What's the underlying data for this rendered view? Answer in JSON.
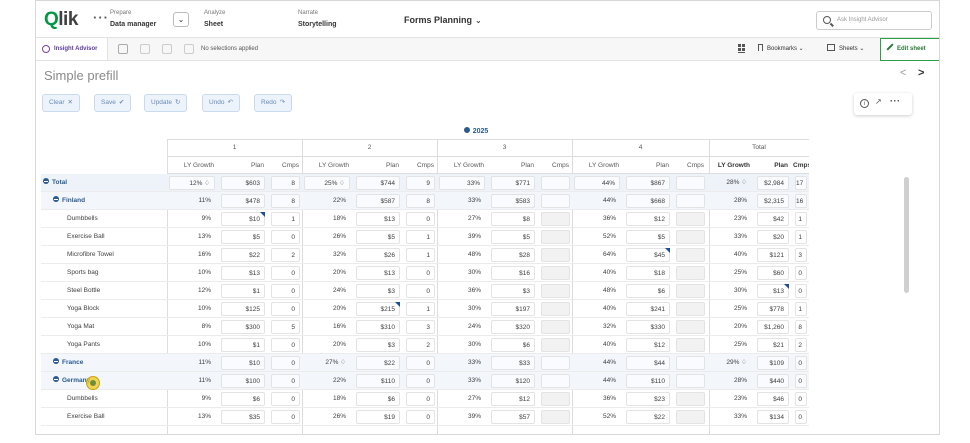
{
  "topbar": {
    "logo": "Qlik",
    "more": "···",
    "steps": [
      {
        "small": "Prepare",
        "big": "Data manager"
      },
      {
        "small": "Analyze",
        "big": "Sheet"
      },
      {
        "small": "Narrate",
        "big": "Storytelling"
      }
    ],
    "app_title": "Forms Planning",
    "search_placeholder": "Ask Insight Advisor"
  },
  "toolbar": {
    "insight_advisor": "Insight Advisor",
    "no_selections": "No selections applied",
    "bookmarks": "Bookmarks",
    "sheets": "Sheets",
    "edit_sheet": "Edit sheet"
  },
  "sheet": {
    "title": "Simple prefill",
    "prev": "<",
    "next": ">"
  },
  "actions": {
    "clear": "Clear",
    "clear_icon": "✕",
    "save": "Save",
    "save_icon": "✔",
    "update": "Update",
    "update_icon": "↻",
    "undo": "Undo",
    "undo_icon": "↶",
    "redo": "Redo",
    "redo_icon": "↷"
  },
  "table": {
    "year": "2025",
    "quarters": [
      "1",
      "2",
      "3",
      "4"
    ],
    "total_label": "Total",
    "col_headers": [
      "LY Growth",
      "Plan",
      "Cmps"
    ],
    "rows": [
      {
        "label": "Total",
        "level": 0,
        "q": [
          [
            "12% ♢",
            "$603",
            "8"
          ],
          [
            "25% ♢",
            "$744",
            "9"
          ],
          [
            "33%",
            "$771",
            ""
          ],
          [
            "44%",
            "$867",
            ""
          ]
        ],
        "t": [
          "28% ♢",
          "$2,984",
          "17"
        ]
      },
      {
        "label": "Finland",
        "level": 1,
        "q": [
          [
            "11%",
            "$478",
            "8"
          ],
          [
            "22%",
            "$587",
            "8"
          ],
          [
            "33%",
            "$583",
            ""
          ],
          [
            "44%",
            "$668",
            ""
          ]
        ],
        "t": [
          "28%",
          "$2,315",
          "16"
        ]
      },
      {
        "label": "Dumbbells",
        "level": 2,
        "q": [
          [
            "9%",
            "$10",
            "1"
          ],
          [
            "18%",
            "$13",
            "0"
          ],
          [
            "27%",
            "$8",
            ""
          ],
          [
            "36%",
            "$12",
            ""
          ]
        ],
        "t": [
          "23%",
          "$42",
          "1"
        ]
      },
      {
        "label": "Exercise Ball",
        "level": 2,
        "q": [
          [
            "13%",
            "$5",
            "0"
          ],
          [
            "26%",
            "$5",
            "1"
          ],
          [
            "39%",
            "$5",
            ""
          ],
          [
            "52%",
            "$5",
            ""
          ]
        ],
        "t": [
          "33%",
          "$20",
          "1"
        ]
      },
      {
        "label": "Microfibre Towel",
        "level": 2,
        "q": [
          [
            "16%",
            "$22",
            "2"
          ],
          [
            "32%",
            "$26",
            "1"
          ],
          [
            "48%",
            "$28",
            ""
          ],
          [
            "64%",
            "$45",
            ""
          ]
        ],
        "t": [
          "40%",
          "$121",
          "3"
        ]
      },
      {
        "label": "Sports bag",
        "level": 2,
        "q": [
          [
            "10%",
            "$13",
            "0"
          ],
          [
            "20%",
            "$13",
            "0"
          ],
          [
            "30%",
            "$16",
            ""
          ],
          [
            "40%",
            "$18",
            ""
          ]
        ],
        "t": [
          "25%",
          "$60",
          "0"
        ]
      },
      {
        "label": "Steel Bottle",
        "level": 2,
        "q": [
          [
            "12%",
            "$1",
            "0"
          ],
          [
            "24%",
            "$3",
            "0"
          ],
          [
            "36%",
            "$3",
            ""
          ],
          [
            "48%",
            "$6",
            ""
          ]
        ],
        "t": [
          "30%",
          "$13",
          "0"
        ]
      },
      {
        "label": "Yoga Block",
        "level": 2,
        "q": [
          [
            "10%",
            "$125",
            "0"
          ],
          [
            "20%",
            "$215",
            "1"
          ],
          [
            "30%",
            "$197",
            ""
          ],
          [
            "40%",
            "$241",
            ""
          ]
        ],
        "t": [
          "25%",
          "$778",
          "1"
        ]
      },
      {
        "label": "Yoga Mat",
        "level": 2,
        "q": [
          [
            "8%",
            "$300",
            "5"
          ],
          [
            "16%",
            "$310",
            "3"
          ],
          [
            "24%",
            "$320",
            ""
          ],
          [
            "32%",
            "$330",
            ""
          ]
        ],
        "t": [
          "20%",
          "$1,260",
          "8"
        ]
      },
      {
        "label": "Yoga Pants",
        "level": 2,
        "q": [
          [
            "10%",
            "$1",
            "0"
          ],
          [
            "20%",
            "$3",
            "2"
          ],
          [
            "30%",
            "$6",
            ""
          ],
          [
            "40%",
            "$12",
            ""
          ]
        ],
        "t": [
          "25%",
          "$21",
          "2"
        ]
      },
      {
        "label": "France",
        "level": 1,
        "q": [
          [
            "11%",
            "$10",
            "0"
          ],
          [
            "27% ♢",
            "$22",
            "0"
          ],
          [
            "33%",
            "$33",
            ""
          ],
          [
            "44%",
            "$44",
            ""
          ]
        ],
        "t": [
          "29% ♢",
          "$109",
          "0"
        ]
      },
      {
        "label": "Germany",
        "level": 1,
        "q": [
          [
            "11%",
            "$100",
            "0"
          ],
          [
            "22%",
            "$110",
            "0"
          ],
          [
            "33%",
            "$120",
            ""
          ],
          [
            "44%",
            "$110",
            ""
          ]
        ],
        "t": [
          "28%",
          "$440",
          "0"
        ]
      },
      {
        "label": "Dumbbells",
        "level": 2,
        "q": [
          [
            "9%",
            "$6",
            "0"
          ],
          [
            "18%",
            "$6",
            "0"
          ],
          [
            "27%",
            "$12",
            ""
          ],
          [
            "36%",
            "$23",
            ""
          ]
        ],
        "t": [
          "23%",
          "$46",
          "0"
        ]
      },
      {
        "label": "Exercise Ball",
        "level": 2,
        "q": [
          [
            "13%",
            "$35",
            "0"
          ],
          [
            "26%",
            "$19",
            "0"
          ],
          [
            "39%",
            "$57",
            ""
          ],
          [
            "52%",
            "$22",
            ""
          ]
        ],
        "t": [
          "33%",
          "$134",
          "0"
        ]
      }
    ]
  }
}
